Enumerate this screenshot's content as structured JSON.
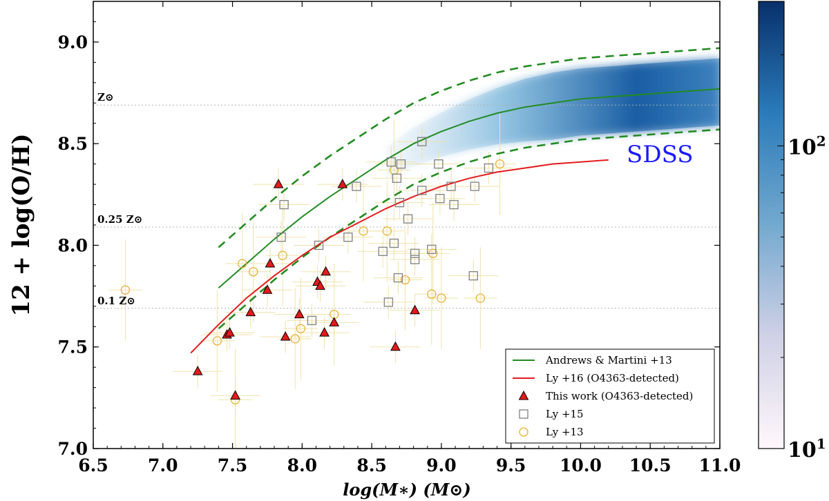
{
  "chart_data": {
    "type": "scatter",
    "title": "",
    "xlabel": "log(M∗) (M⊙)",
    "ylabel": "12 + log(O/H)",
    "xlim": [
      6.5,
      11.0
    ],
    "ylim": [
      7.0,
      9.2
    ],
    "x_ticks": [
      "6.5",
      "7.0",
      "7.5",
      "8.0",
      "8.5",
      "9.0",
      "9.5",
      "10.0",
      "10.5",
      "11.0"
    ],
    "y_ticks": [
      "7.0",
      "7.5",
      "8.0",
      "8.5",
      "9.0"
    ],
    "grid": false,
    "legend_position": "bottom-right",
    "reference_lines": [
      {
        "y": 8.69,
        "label": "Z⊙"
      },
      {
        "y": 8.09,
        "label": "0.25 Z⊙"
      },
      {
        "y": 7.69,
        "label": "0.1 Z⊙"
      }
    ],
    "annotations": [
      {
        "text": "SDSS",
        "x": 10.57,
        "y": 8.45
      }
    ],
    "colorbar": {
      "colormap": "Blues",
      "min": 10,
      "max": 300,
      "scale": "log",
      "tick_base": "10",
      "tick_exponents": [
        "1",
        "2"
      ]
    },
    "series": [
      {
        "name": "Andrews & Martini +13",
        "type": "line",
        "style": "solid",
        "color": "#228b22",
        "x": [
          7.4,
          7.6,
          7.8,
          8.0,
          8.2,
          8.4,
          8.6,
          8.8,
          9.0,
          9.2,
          9.4,
          9.6,
          9.8,
          10.0,
          10.2,
          10.4,
          10.6,
          10.8,
          11.0
        ],
        "y": [
          7.79,
          7.91,
          8.03,
          8.14,
          8.24,
          8.33,
          8.42,
          8.5,
          8.56,
          8.61,
          8.65,
          8.68,
          8.7,
          8.72,
          8.73,
          8.74,
          8.75,
          8.76,
          8.77
        ]
      },
      {
        "name": "",
        "type": "line",
        "style": "dashed",
        "color": "#228b22",
        "x": [
          7.4,
          7.6,
          7.8,
          8.0,
          8.2,
          8.4,
          8.6,
          8.8,
          9.0,
          9.2,
          9.4,
          9.6,
          9.8,
          10.0,
          10.2,
          10.4,
          10.6,
          10.8,
          11.0
        ],
        "y": [
          7.99,
          8.11,
          8.23,
          8.34,
          8.44,
          8.53,
          8.62,
          8.7,
          8.76,
          8.81,
          8.85,
          8.88,
          8.9,
          8.92,
          8.93,
          8.94,
          8.95,
          8.96,
          8.97
        ]
      },
      {
        "name": "",
        "type": "line",
        "style": "dashed",
        "color": "#228b22",
        "x": [
          7.4,
          7.6,
          7.8,
          8.0,
          8.2,
          8.4,
          8.6,
          8.8,
          9.0,
          9.2,
          9.4,
          9.6,
          9.8,
          10.0,
          10.2,
          10.4,
          10.6,
          10.8,
          11.0
        ],
        "y": [
          7.59,
          7.71,
          7.83,
          7.94,
          8.04,
          8.13,
          8.22,
          8.3,
          8.36,
          8.41,
          8.45,
          8.48,
          8.5,
          8.52,
          8.53,
          8.54,
          8.55,
          8.56,
          8.57
        ]
      },
      {
        "name": "Ly +16 (O4363-detected)",
        "type": "line",
        "style": "solid",
        "color": "#e31a1c",
        "x": [
          7.2,
          7.4,
          7.6,
          7.8,
          8.0,
          8.2,
          8.4,
          8.6,
          8.8,
          9.0,
          9.2,
          9.4,
          9.6,
          9.8,
          10.0,
          10.2
        ],
        "y": [
          7.47,
          7.61,
          7.74,
          7.85,
          7.95,
          8.04,
          8.11,
          8.18,
          8.24,
          8.29,
          8.33,
          8.36,
          8.38,
          8.4,
          8.41,
          8.42
        ]
      },
      {
        "name": "This work (O4363-detected)",
        "type": "scatter",
        "marker": "triangle",
        "color": "#e31a1c",
        "x": [
          7.25,
          7.46,
          7.48,
          7.52,
          7.63,
          7.75,
          7.77,
          7.83,
          7.88,
          7.98,
          8.11,
          8.13,
          8.16,
          8.17,
          8.23,
          8.29,
          8.67,
          8.81
        ],
        "y": [
          7.38,
          7.56,
          7.57,
          7.26,
          7.67,
          7.78,
          7.91,
          8.3,
          7.55,
          7.66,
          7.82,
          7.8,
          7.57,
          7.87,
          7.62,
          8.3,
          7.5,
          7.68
        ]
      },
      {
        "name": "Ly +15",
        "type": "scatter",
        "marker": "square",
        "color": "#7f7f7f",
        "x": [
          7.85,
          7.87,
          8.07,
          8.12,
          8.33,
          8.39,
          8.58,
          8.62,
          8.64,
          8.66,
          8.68,
          8.69,
          8.7,
          8.71,
          8.76,
          8.81,
          8.81,
          8.86,
          8.86,
          8.93,
          8.98,
          8.99,
          9.07,
          9.09,
          9.23,
          9.24,
          9.34
        ],
        "y": [
          8.04,
          8.2,
          7.63,
          8.0,
          8.04,
          8.29,
          7.97,
          7.72,
          8.41,
          8.01,
          8.33,
          7.84,
          8.21,
          8.4,
          8.13,
          7.93,
          7.96,
          8.27,
          8.51,
          7.98,
          8.4,
          8.23,
          8.29,
          8.2,
          7.85,
          8.29,
          8.38
        ]
      },
      {
        "name": "Ly +13",
        "type": "scatter",
        "marker": "circle",
        "color": "#e8b030",
        "x": [
          6.73,
          7.39,
          7.52,
          7.57,
          7.65,
          7.86,
          7.95,
          7.99,
          8.23,
          8.44,
          8.61,
          8.66,
          8.74,
          8.93,
          8.94,
          9.0,
          9.28,
          9.42
        ],
        "y": [
          7.78,
          7.53,
          7.24,
          7.91,
          7.87,
          7.95,
          7.54,
          7.59,
          7.66,
          8.07,
          8.07,
          8.37,
          7.83,
          7.76,
          7.96,
          7.74,
          7.74,
          8.4
        ]
      }
    ]
  }
}
